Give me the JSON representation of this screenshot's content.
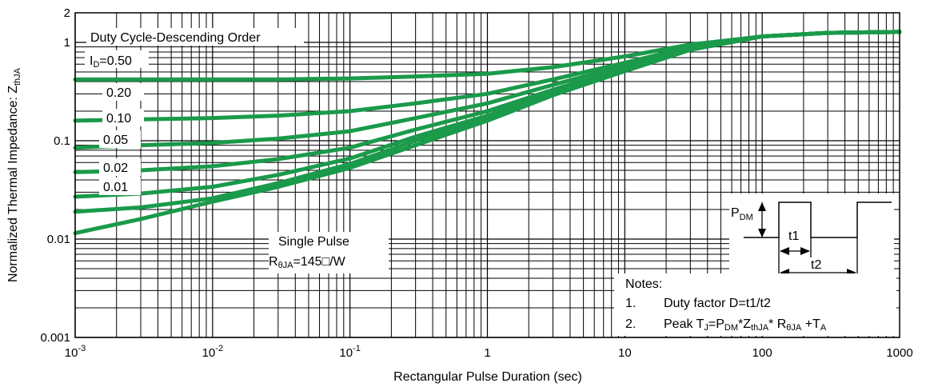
{
  "chart_data": {
    "type": "line",
    "x_scale": "log",
    "y_scale": "log",
    "xlim": [
      0.001,
      1000
    ],
    "ylim": [
      0.001,
      2
    ],
    "xlabel": "Rectangular Pulse Duration (sec)",
    "ylabel_main": "Normalized Thermal Impedance: Z",
    "ylabel_sub": "thJA",
    "x_ticks": [
      {
        "mant": "10",
        "exp": "-3"
      },
      {
        "mant": "10",
        "exp": "-2"
      },
      {
        "mant": "10",
        "exp": "-1"
      },
      {
        "mant": "1",
        "exp": ""
      },
      {
        "mant": "10",
        "exp": ""
      },
      {
        "mant": "100",
        "exp": ""
      },
      {
        "mant": "1000",
        "exp": ""
      }
    ],
    "y_ticks": [
      "0.001",
      "0.01",
      "0.1",
      "1",
      "2"
    ],
    "legend_title": "Duty Cycle-Descending Order",
    "legend_first_prefix": "I",
    "legend_first_sub": "D",
    "legend_first_value": "=0.50",
    "series": [
      {
        "name": "0.50",
        "x": [
          0.001,
          0.003,
          0.01,
          0.03,
          0.1,
          0.3,
          1,
          3,
          10,
          30,
          100,
          300,
          1000
        ],
        "y": [
          0.42,
          0.42,
          0.42,
          0.42,
          0.43,
          0.45,
          0.48,
          0.56,
          0.72,
          0.95,
          1.15,
          1.25,
          1.28
        ]
      },
      {
        "name": "0.20",
        "x": [
          0.001,
          0.003,
          0.01,
          0.03,
          0.1,
          0.3,
          1,
          3,
          10,
          30,
          100,
          300,
          1000
        ],
        "y": [
          0.16,
          0.165,
          0.17,
          0.18,
          0.2,
          0.24,
          0.3,
          0.42,
          0.62,
          0.9,
          1.15,
          1.25,
          1.28
        ]
      },
      {
        "name": "0.10",
        "x": [
          0.001,
          0.003,
          0.01,
          0.03,
          0.1,
          0.3,
          1,
          3,
          10,
          30,
          100,
          300,
          1000
        ],
        "y": [
          0.085,
          0.09,
          0.095,
          0.105,
          0.125,
          0.17,
          0.24,
          0.37,
          0.58,
          0.88,
          1.15,
          1.25,
          1.28
        ]
      },
      {
        "name": "0.05",
        "x": [
          0.001,
          0.003,
          0.01,
          0.03,
          0.1,
          0.3,
          1,
          3,
          10,
          30,
          100,
          300,
          1000
        ],
        "y": [
          0.048,
          0.05,
          0.055,
          0.065,
          0.085,
          0.13,
          0.2,
          0.33,
          0.55,
          0.86,
          1.15,
          1.25,
          1.28
        ]
      },
      {
        "name": "0.02",
        "x": [
          0.001,
          0.003,
          0.01,
          0.03,
          0.1,
          0.3,
          1,
          3,
          10,
          30,
          100,
          300,
          1000
        ],
        "y": [
          0.027,
          0.029,
          0.034,
          0.045,
          0.066,
          0.11,
          0.18,
          0.31,
          0.53,
          0.85,
          1.15,
          1.25,
          1.28
        ]
      },
      {
        "name": "0.01",
        "x": [
          0.001,
          0.003,
          0.01,
          0.03,
          0.1,
          0.3,
          1,
          3,
          10,
          30,
          100,
          300,
          1000
        ],
        "y": [
          0.019,
          0.021,
          0.026,
          0.037,
          0.058,
          0.1,
          0.17,
          0.3,
          0.52,
          0.85,
          1.15,
          1.25,
          1.28
        ]
      },
      {
        "name": "Single Pulse",
        "x": [
          0.001,
          0.003,
          0.01,
          0.03,
          0.1,
          0.3,
          1,
          3,
          10,
          30,
          100,
          300,
          1000
        ],
        "y": [
          0.0115,
          0.016,
          0.024,
          0.034,
          0.053,
          0.09,
          0.16,
          0.29,
          0.51,
          0.84,
          1.15,
          1.25,
          1.28
        ]
      }
    ],
    "series_color": "#1a9a4a",
    "single_pulse_label": "Single Pulse",
    "rtheta_prefix": "R",
    "rtheta_sub": "θJA",
    "rtheta_value": "=145□/W",
    "waveform": {
      "pdm_main": "P",
      "pdm_sub": "DM",
      "t1": "t1",
      "t2": "t2"
    },
    "notes": {
      "title": "Notes:",
      "n1_num": "1.",
      "n1_text": "Duty factor D=t1/t2",
      "n2_num": "2.",
      "n2_a": "Peak T",
      "n2_b": "J",
      "n2_c": "=P",
      "n2_d": "DM",
      "n2_e": "*Z",
      "n2_f": "thJA",
      "n2_g": "* R",
      "n2_h": "θJA",
      "n2_i": " +T",
      "n2_j": "A"
    }
  }
}
